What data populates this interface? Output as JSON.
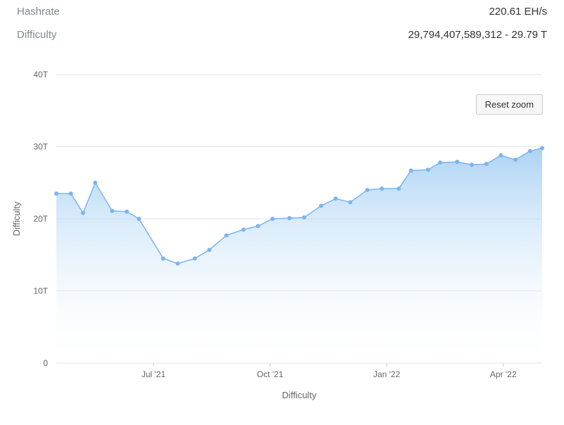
{
  "stats": {
    "hashrate": {
      "label": "Hashrate",
      "value": "220.61 EH/s"
    },
    "difficulty": {
      "label": "Difficulty",
      "raw": "29,794,407,589,312",
      "formatted": "29.79 T"
    }
  },
  "chart": {
    "type": "area",
    "y_axis_label": "Difficulty",
    "x_axis_label": "Difficulty",
    "reset_button": "Reset zoom",
    "ylim": [
      0,
      40
    ],
    "ytick_step": 10,
    "yticks": [
      "0",
      "10T",
      "20T",
      "30T",
      "40T"
    ],
    "xticks": [
      "Jul '21",
      "Oct '21",
      "Jan '22",
      "Apr '22"
    ],
    "xtick_positions": [
      0.2,
      0.44,
      0.68,
      0.92
    ],
    "line_color": "#7cb5ec",
    "marker_color": "#7cb5ec",
    "marker_size": 3,
    "line_width": 1.5,
    "fill_top_color": "#90c4f0",
    "fill_bottom_color": "#ffffff",
    "background_color": "#ffffff",
    "grid_color": "#e6e6e6",
    "label_fontsize": 13,
    "tick_fontsize": 12,
    "points": [
      {
        "x": 0.0,
        "y": 23.5
      },
      {
        "x": 0.03,
        "y": 23.5
      },
      {
        "x": 0.055,
        "y": 20.8
      },
      {
        "x": 0.08,
        "y": 25.0
      },
      {
        "x": 0.115,
        "y": 21.1
      },
      {
        "x": 0.145,
        "y": 21.0
      },
      {
        "x": 0.17,
        "y": 20.0
      },
      {
        "x": 0.22,
        "y": 14.5
      },
      {
        "x": 0.25,
        "y": 13.8
      },
      {
        "x": 0.285,
        "y": 14.5
      },
      {
        "x": 0.315,
        "y": 15.7
      },
      {
        "x": 0.35,
        "y": 17.7
      },
      {
        "x": 0.385,
        "y": 18.5
      },
      {
        "x": 0.415,
        "y": 19.0
      },
      {
        "x": 0.445,
        "y": 20.0
      },
      {
        "x": 0.48,
        "y": 20.1
      },
      {
        "x": 0.51,
        "y": 20.2
      },
      {
        "x": 0.545,
        "y": 21.8
      },
      {
        "x": 0.575,
        "y": 22.8
      },
      {
        "x": 0.605,
        "y": 22.3
      },
      {
        "x": 0.64,
        "y": 24.0
      },
      {
        "x": 0.67,
        "y": 24.2
      },
      {
        "x": 0.705,
        "y": 24.2
      },
      {
        "x": 0.73,
        "y": 26.7
      },
      {
        "x": 0.765,
        "y": 26.8
      },
      {
        "x": 0.79,
        "y": 27.8
      },
      {
        "x": 0.825,
        "y": 27.9
      },
      {
        "x": 0.855,
        "y": 27.5
      },
      {
        "x": 0.885,
        "y": 27.6
      },
      {
        "x": 0.915,
        "y": 28.8
      },
      {
        "x": 0.945,
        "y": 28.2
      },
      {
        "x": 0.975,
        "y": 29.4
      },
      {
        "x": 1.0,
        "y": 29.8
      }
    ]
  }
}
